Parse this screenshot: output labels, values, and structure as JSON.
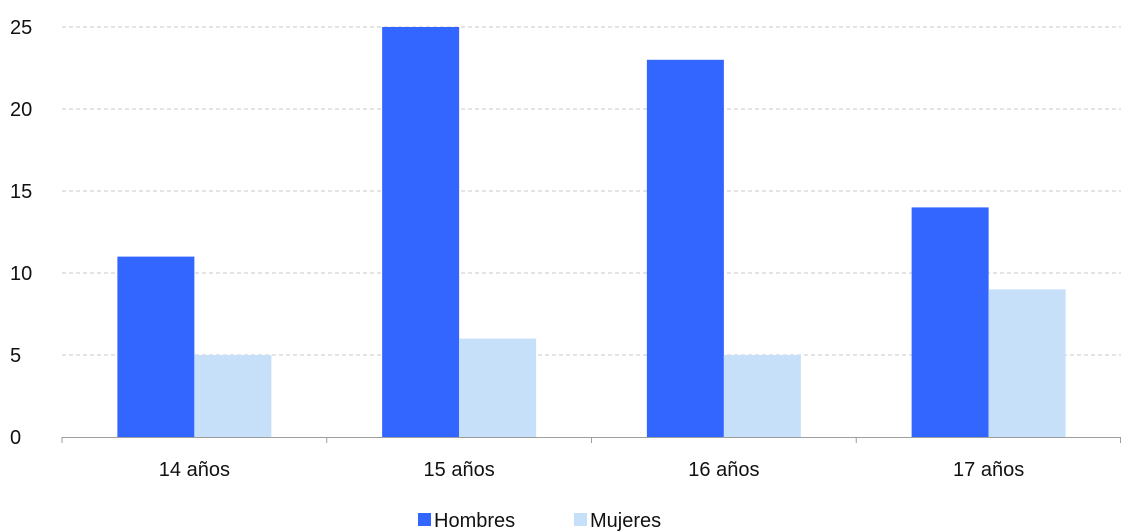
{
  "chart_data": {
    "type": "bar",
    "categories": [
      "14 años",
      "15 años",
      "16 años",
      "17 años"
    ],
    "series": [
      {
        "name": "Hombres",
        "values": [
          11,
          25,
          23,
          14
        ],
        "color": "#3366FF"
      },
      {
        "name": "Mujeres",
        "values": [
          5,
          6,
          5,
          9
        ],
        "color": "#C6E0FA"
      }
    ],
    "ylim": [
      0,
      25
    ],
    "yticks": [
      0,
      5,
      10,
      15,
      20,
      25
    ],
    "grid": true,
    "legend_position": "bottom-center",
    "title": "",
    "xlabel": "",
    "ylabel": ""
  }
}
